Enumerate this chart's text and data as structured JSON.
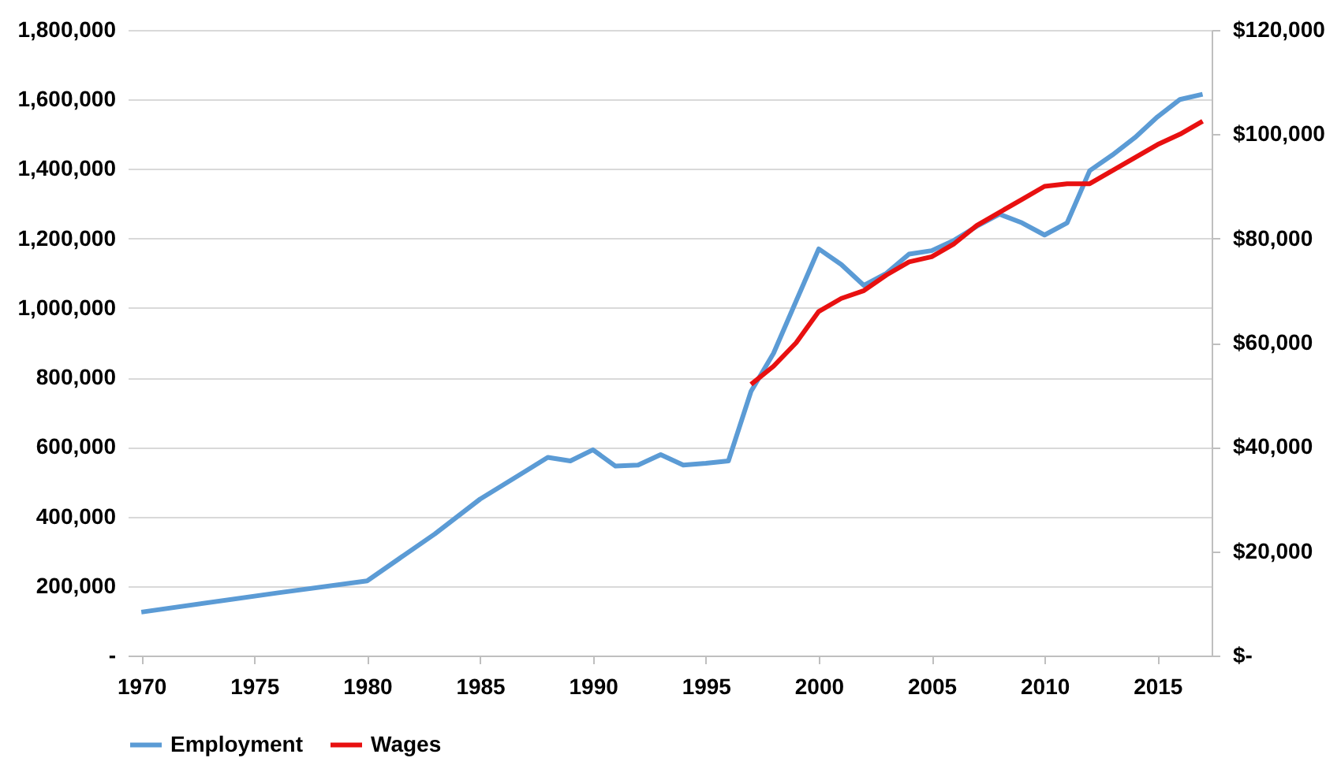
{
  "chart_data": {
    "type": "line",
    "legend": "bottom",
    "grid": "y",
    "line_style": "solid",
    "marker": "none",
    "xlim": [
      1969.4,
      2017.4
    ],
    "xticks": [
      1970,
      1975,
      1980,
      1985,
      1990,
      1995,
      2000,
      2005,
      2010,
      2015
    ],
    "ylim": [
      0,
      1800000
    ],
    "yticks": [
      {
        "value": 0,
        "label": "-"
      },
      {
        "value": 200000,
        "label": "200,000"
      },
      {
        "value": 400000,
        "label": "400,000"
      },
      {
        "value": 600000,
        "label": "600,000"
      },
      {
        "value": 800000,
        "label": "800,000"
      },
      {
        "value": 1000000,
        "label": "1,000,000"
      },
      {
        "value": 1200000,
        "label": "1,200,000"
      },
      {
        "value": 1400000,
        "label": "1,400,000"
      },
      {
        "value": 1600000,
        "label": "1,600,000"
      },
      {
        "value": 1800000,
        "label": "1,800,000"
      }
    ],
    "y2lim": [
      0,
      120000
    ],
    "y2ticks": [
      {
        "value": 0,
        "label": "$-"
      },
      {
        "value": 20000,
        "label": "$20,000"
      },
      {
        "value": 40000,
        "label": "$40,000"
      },
      {
        "value": 60000,
        "label": "$60,000"
      },
      {
        "value": 80000,
        "label": "$80,000"
      },
      {
        "value": 100000,
        "label": "$100,000"
      },
      {
        "value": 120000,
        "label": "$120,000"
      }
    ],
    "series": [
      {
        "name": "Employment",
        "color": "#5b9bd5",
        "x": [
          1970,
          1976,
          1980,
          1983,
          1985,
          1987,
          1988,
          1989,
          1990,
          1991,
          1992,
          1993,
          1994,
          1995,
          1996,
          1997,
          1998,
          1999,
          2000,
          2001,
          2002,
          2003,
          2004,
          2005,
          2006,
          2007,
          2008,
          2009,
          2010,
          2011,
          2012,
          2013,
          2014,
          2015,
          2016,
          2017
        ],
        "values": [
          125000,
          180000,
          215000,
          350000,
          450000,
          530000,
          570000,
          560000,
          592000,
          545000,
          548000,
          578000,
          548000,
          553000,
          560000,
          760000,
          870000,
          1020000,
          1170000,
          1125000,
          1065000,
          1100000,
          1155000,
          1165000,
          1195000,
          1235000,
          1270000,
          1245000,
          1210000,
          1245000,
          1395000,
          1440000,
          1490000,
          1550000,
          1600000,
          1615000
        ]
      },
      {
        "name": "Wages",
        "color": "#e81010",
        "axis": "y2",
        "x": [
          1997,
          1998,
          1999,
          2000,
          2001,
          2002,
          2003,
          2004,
          2005,
          2006,
          2007,
          2008,
          2009,
          2010,
          2011,
          2012,
          2013,
          2014,
          2015,
          2016,
          2017
        ],
        "values": [
          52000,
          55500,
          60000,
          66000,
          68500,
          70000,
          73000,
          75500,
          76500,
          79000,
          82500,
          85000,
          87500,
          90000,
          90500,
          90500,
          93000,
          95500,
          98000,
          100000,
          102500
        ]
      }
    ]
  }
}
